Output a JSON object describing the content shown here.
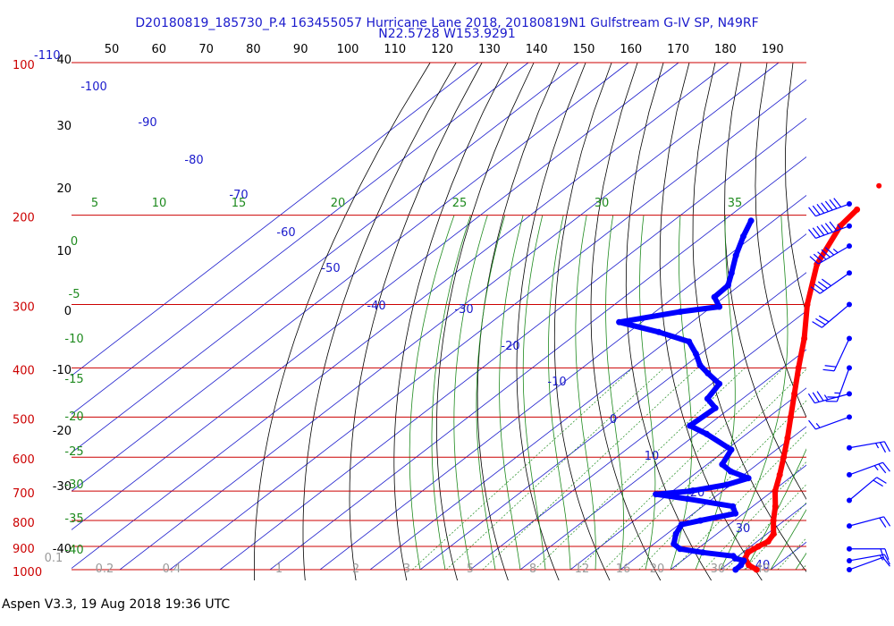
{
  "chart_data": {
    "type": "skew-t log-p",
    "title": "D20180819_185730_P.4 163455057 Hurricane Lane 2018, 20180819N1 Gulfstream G-IV SP, N49RF",
    "subtitle": "N22.5728 W153.9291",
    "pressure_labels": [
      "100",
      "200",
      "300",
      "400",
      "500",
      "600",
      "700",
      "800",
      "900",
      "1000"
    ],
    "pressure_levels_hpa": [
      100,
      200,
      300,
      400,
      500,
      600,
      700,
      800,
      900,
      1000
    ],
    "top_pressure_suffix": "-110",
    "top_fahrenheit_labels": [
      "50",
      "60",
      "70",
      "80",
      "90",
      "100",
      "110",
      "120",
      "130",
      "140",
      "150",
      "160",
      "170",
      "180",
      "190"
    ],
    "left_celsius_labels": [
      "40",
      "30",
      "20",
      "10",
      "0",
      "-10",
      "-20",
      "-30",
      "-40"
    ],
    "isotherm_labels": [
      "-100",
      "-90",
      "-80",
      "-70",
      "-60",
      "-50",
      "-40",
      "-30",
      "-20",
      "-10",
      "0",
      "10",
      "20",
      "30",
      "40"
    ],
    "dry_adiabat_labels": [
      "5",
      "10",
      "15",
      "20",
      "25",
      "30",
      "35"
    ],
    "moist_adiabat_labels": [
      "0",
      "-5",
      "-10",
      "-15",
      "-20",
      "-25",
      "-30",
      "-35",
      "-40"
    ],
    "mixing_ratio_labels": [
      "0.1",
      "0.2",
      "0.4",
      "1",
      "2",
      "3",
      "5",
      "8",
      "12",
      "16",
      "20",
      "30",
      "40"
    ],
    "temperature_profile": [
      {
        "p": 1000,
        "t": 27.2
      },
      {
        "p": 980,
        "t": 24.5
      },
      {
        "p": 950,
        "t": 22.0
      },
      {
        "p": 925,
        "t": 21.0
      },
      {
        "p": 900,
        "t": 21.5
      },
      {
        "p": 880,
        "t": 22.2
      },
      {
        "p": 850,
        "t": 21.3
      },
      {
        "p": 800,
        "t": 17.8
      },
      {
        "p": 750,
        "t": 14.5
      },
      {
        "p": 700,
        "t": 10.5
      },
      {
        "p": 650,
        "t": 7.2
      },
      {
        "p": 600,
        "t": 3.4
      },
      {
        "p": 550,
        "t": -0.8
      },
      {
        "p": 500,
        "t": -5.6
      },
      {
        "p": 450,
        "t": -10.9
      },
      {
        "p": 400,
        "t": -16.8
      },
      {
        "p": 350,
        "t": -23.3
      },
      {
        "p": 300,
        "t": -31.5
      },
      {
        "p": 250,
        "t": -40.0
      },
      {
        "p": 210,
        "t": -45.3
      },
      {
        "p": 195,
        "t": -46.2
      }
    ],
    "isolated_temperature_point": {
      "p": 175,
      "t": -48.0
    },
    "dewpoint_profile": [
      {
        "p": 1000,
        "t": 23.0
      },
      {
        "p": 980,
        "t": 22.9
      },
      {
        "p": 960,
        "t": 22.3
      },
      {
        "p": 950,
        "t": 20.0
      },
      {
        "p": 940,
        "t": 19.0
      },
      {
        "p": 925,
        "t": 12.0
      },
      {
        "p": 910,
        "t": 6.5
      },
      {
        "p": 890,
        "t": 4.0
      },
      {
        "p": 850,
        "t": 1.8
      },
      {
        "p": 815,
        "t": 0.5
      },
      {
        "p": 800,
        "t": 3.2
      },
      {
        "p": 775,
        "t": 8.4
      },
      {
        "p": 750,
        "t": 6.0
      },
      {
        "p": 725,
        "t": -5.0
      },
      {
        "p": 710,
        "t": -12.5
      },
      {
        "p": 700,
        "t": -6.5
      },
      {
        "p": 680,
        "t": -0.8
      },
      {
        "p": 660,
        "t": 1.8
      },
      {
        "p": 640,
        "t": -3.5
      },
      {
        "p": 620,
        "t": -7.0
      },
      {
        "p": 580,
        "t": -9.0
      },
      {
        "p": 540,
        "t": -18.0
      },
      {
        "p": 520,
        "t": -23.5
      },
      {
        "p": 480,
        "t": -23.0
      },
      {
        "p": 460,
        "t": -27.0
      },
      {
        "p": 430,
        "t": -28.5
      },
      {
        "p": 410,
        "t": -33.5
      },
      {
        "p": 395,
        "t": -37.2
      },
      {
        "p": 375,
        "t": -41.0
      },
      {
        "p": 355,
        "t": -45.5
      },
      {
        "p": 340,
        "t": -54.0
      },
      {
        "p": 325,
        "t": -64.5
      },
      {
        "p": 310,
        "t": -55.0
      },
      {
        "p": 303,
        "t": -48.5
      },
      {
        "p": 290,
        "t": -52.0
      },
      {
        "p": 275,
        "t": -52.3
      },
      {
        "p": 260,
        "t": -54.8
      },
      {
        "p": 240,
        "t": -58.5
      },
      {
        "p": 220,
        "t": -62.0
      },
      {
        "p": 205,
        "t": -64.5
      }
    ],
    "wind_barbs": [
      {
        "p": 190,
        "direction": 250,
        "speed": 70
      },
      {
        "p": 210,
        "direction": 250,
        "speed": 65
      },
      {
        "p": 230,
        "direction": 240,
        "speed": 55
      },
      {
        "p": 260,
        "direction": 235,
        "speed": 40
      },
      {
        "p": 300,
        "direction": 230,
        "speed": 30
      },
      {
        "p": 350,
        "direction": 205,
        "speed": 20
      },
      {
        "p": 400,
        "direction": 200,
        "speed": 25
      },
      {
        "p": 450,
        "direction": 255,
        "speed": 35
      },
      {
        "p": 500,
        "direction": 250,
        "speed": 15
      },
      {
        "p": 575,
        "direction": 80,
        "speed": 25
      },
      {
        "p": 650,
        "direction": 70,
        "speed": 25
      },
      {
        "p": 730,
        "direction": 50,
        "speed": 20
      },
      {
        "p": 820,
        "direction": 75,
        "speed": 20
      },
      {
        "p": 910,
        "direction": 90,
        "speed": 20
      },
      {
        "p": 960,
        "direction": 80,
        "speed": 15
      },
      {
        "p": 1000,
        "direction": 70,
        "speed": 10
      }
    ],
    "colors": {
      "isobars": "#cc0000",
      "isotherms": "#1a1acc",
      "dry_adiabats": "#000000",
      "moist_adiabats": "#1e8a1e",
      "mixing_ratio": "#1e8a1e",
      "temperature": "#ff0000",
      "dewpoint": "#0000ff",
      "title": "#1a1acc"
    },
    "grid": true
  },
  "footer": "Aspen V3.3, 19 Aug 2018  19:36 UTC"
}
